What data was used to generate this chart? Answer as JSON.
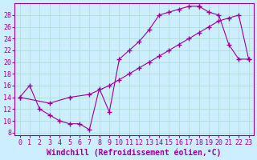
{
  "xlabel": "Windchill (Refroidissement éolien,°C)",
  "bg_color": "#cceeff",
  "line_color": "#990099",
  "xlim": [
    -0.5,
    23.5
  ],
  "ylim": [
    7.5,
    30
  ],
  "xticks": [
    0,
    1,
    2,
    3,
    4,
    5,
    6,
    7,
    8,
    9,
    10,
    11,
    12,
    13,
    14,
    15,
    16,
    17,
    18,
    19,
    20,
    21,
    22,
    23
  ],
  "yticks": [
    8,
    10,
    12,
    14,
    16,
    18,
    20,
    22,
    24,
    26,
    28
  ],
  "line1": [
    [
      0,
      14
    ],
    [
      1,
      16
    ],
    [
      2,
      12
    ],
    [
      3,
      11
    ],
    [
      4,
      10
    ],
    [
      5,
      9.5
    ],
    [
      6,
      9.5
    ],
    [
      7,
      8.5
    ],
    [
      8,
      15.5
    ],
    [
      9,
      11.5
    ],
    [
      10,
      20.5
    ],
    [
      11,
      22
    ],
    [
      12,
      23.5
    ],
    [
      13,
      25.5
    ],
    [
      14,
      28
    ],
    [
      15,
      28.5
    ],
    [
      16,
      29
    ],
    [
      17,
      29.5
    ],
    [
      18,
      29.5
    ]
  ],
  "line2": [
    [
      0,
      14
    ],
    [
      3,
      13
    ],
    [
      5,
      14
    ],
    [
      7,
      14.5
    ],
    [
      9,
      16
    ],
    [
      10,
      17
    ],
    [
      11,
      18
    ],
    [
      12,
      19
    ],
    [
      13,
      20
    ],
    [
      14,
      21
    ],
    [
      15,
      22
    ],
    [
      16,
      23
    ],
    [
      17,
      24
    ],
    [
      18,
      25
    ],
    [
      19,
      26
    ],
    [
      20,
      27
    ],
    [
      21,
      27.5
    ],
    [
      22,
      28
    ],
    [
      23,
      20.5
    ]
  ],
  "line3": [
    [
      18,
      29.5
    ],
    [
      19,
      28.5
    ],
    [
      20,
      28
    ],
    [
      21,
      23
    ],
    [
      22,
      20.5
    ],
    [
      23,
      20.5
    ]
  ],
  "grid_color": "#aaddcc",
  "xlabel_fontsize": 7,
  "tick_fontsize": 6,
  "font_family": "monospace"
}
